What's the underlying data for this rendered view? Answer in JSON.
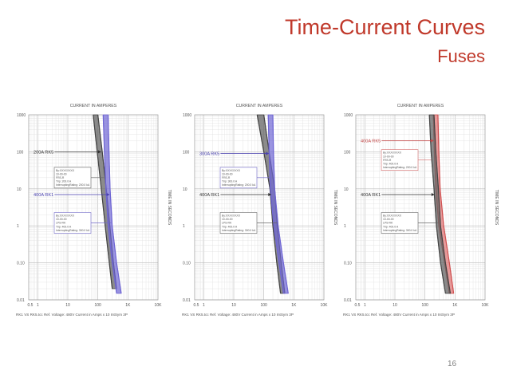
{
  "slide": {
    "title": "Time-Current Curves",
    "subtitle": "Fuses",
    "page_number": "16"
  },
  "colors": {
    "title": "#c0392b",
    "grid": "#d0d0d0",
    "curve_gray": "#555555",
    "curve_blue": "#6f66d4",
    "curve_red": "#e07a7a",
    "callout_blue": "#7068c8",
    "callout_red": "#d66a6a"
  },
  "chart_data": [
    {
      "type": "line",
      "title": "CURRENT IN AMPERES",
      "ylabel": "TIME IN SECONDS",
      "footer": "RK1 VS RK5.tcc  Ref. Voltage: 480V  Current in Amps x 10  IntSym 3P",
      "x_scale": "log",
      "y_scale": "log",
      "xlim": [
        0.5,
        10000
      ],
      "ylim": [
        0.01,
        1000
      ],
      "x_ticks": [
        "0.5",
        "1",
        "10",
        "100",
        "1K",
        "10K"
      ],
      "y_ticks": [
        "1000",
        "100",
        "10",
        "1",
        "0.10",
        "0.01"
      ],
      "grid": true,
      "series": [
        {
          "name": "200A RK5",
          "color": "gray",
          "upper": [
            [
              100,
              1000
            ],
            [
              140,
              100
            ],
            [
              190,
              10
            ],
            [
              250,
              1
            ],
            [
              330,
              0.1
            ],
            [
              420,
              0.02
            ]
          ],
          "lower": [
            [
              70,
              1000
            ],
            [
              95,
              100
            ],
            [
              130,
              10
            ],
            [
              175,
              1
            ],
            [
              240,
              0.1
            ],
            [
              300,
              0.02
            ]
          ]
        },
        {
          "name": "400A RK1",
          "color": "blue",
          "upper": [
            [
              220,
              1000
            ],
            [
              235,
              100
            ],
            [
              255,
              10
            ],
            [
              300,
              1
            ],
            [
              420,
              0.1
            ],
            [
              600,
              0.015
            ]
          ],
          "lower": [
            [
              150,
              1000
            ],
            [
              165,
              100
            ],
            [
              185,
              10
            ],
            [
              220,
              1
            ],
            [
              300,
              0.1
            ],
            [
              420,
              0.015
            ]
          ]
        }
      ],
      "labels": [
        {
          "text": "200A RK5",
          "y": 100,
          "color": "gray",
          "x_end": 130
        },
        {
          "text": "400A RK1",
          "y": 7,
          "color": "blue",
          "x_end": 250
        }
      ],
      "callouts": [
        {
          "y": 20,
          "color": "gray",
          "lines": [
            "By:XXXXXXXX",
            "10-00-00",
            "FRS-R",
            "Trip: 200.0 A",
            "InterruptingRating: 200.0 kA"
          ]
        },
        {
          "y": 1.2,
          "color": "blue",
          "lines": [
            "By:XXXXXXXX",
            "10-00-00",
            "LPS-RK",
            "Trip: 400.0 A",
            "InterruptingRating: 300.0 kA"
          ]
        }
      ]
    },
    {
      "type": "line",
      "title": "CURRENT IN AMPERES",
      "ylabel": "TIME IN SECONDS",
      "footer": "RK1 VS RK5.tcc  Ref. Voltage: 480V  Current in Amps x 10  IntSym 3P",
      "x_scale": "log",
      "y_scale": "log",
      "xlim": [
        0.5,
        10000
      ],
      "ylim": [
        0.01,
        1000
      ],
      "x_ticks": [
        "0.5",
        "1",
        "10",
        "100",
        "1K",
        "10K"
      ],
      "y_ticks": [
        "1000",
        "100",
        "10",
        "1",
        "0.10",
        "0.01"
      ],
      "grid": true,
      "series": [
        {
          "name": "400A RK1",
          "color": "gray",
          "upper": [
            [
              100,
              1000
            ],
            [
              150,
              100
            ],
            [
              230,
              10
            ],
            [
              280,
              1
            ],
            [
              380,
              0.1
            ],
            [
              500,
              0.015
            ]
          ],
          "lower": [
            [
              60,
              1000
            ],
            [
              100,
              100
            ],
            [
              160,
              10
            ],
            [
              200,
              1
            ],
            [
              270,
              0.1
            ],
            [
              360,
              0.015
            ]
          ]
        },
        {
          "name": "300A RK5",
          "color": "blue",
          "upper": [
            [
              200,
              1000
            ],
            [
              210,
              100
            ],
            [
              230,
              10
            ],
            [
              300,
              1
            ],
            [
              450,
              0.1
            ],
            [
              650,
              0.015
            ]
          ],
          "lower": [
            [
              140,
              1000
            ],
            [
              150,
              100
            ],
            [
              165,
              10
            ],
            [
              215,
              1
            ],
            [
              320,
              0.1
            ],
            [
              450,
              0.015
            ]
          ]
        }
      ],
      "labels": [
        {
          "text": "300A RK5",
          "y": 90,
          "color": "blue",
          "x_end": 150
        },
        {
          "text": "400A RK1",
          "y": 7,
          "color": "gray",
          "x_end": 180
        }
      ],
      "callouts": [
        {
          "y": 20,
          "color": "blue",
          "lines": [
            "By:XXXXXXXX",
            "10-00-00",
            "FRS-R",
            "Trip: 300.0 A",
            "InterruptingRating: 200.0 kA"
          ]
        },
        {
          "y": 1.2,
          "color": "gray",
          "lines": [
            "By:XXXXXXXX",
            "10-00-00",
            "LPS-RK",
            "Trip: 400.0 A",
            "InterruptingRating: 300.0 kA"
          ]
        }
      ]
    },
    {
      "type": "line",
      "title": "CURRENT IN AMPERES",
      "ylabel": "TIME IN SECONDS",
      "footer": "RK1 VS RK5.tcc  Ref. Voltage: 480V  Current in Amps x 10  IntSym 3P",
      "x_scale": "log",
      "y_scale": "log",
      "xlim": [
        0.5,
        10000
      ],
      "ylim": [
        0.01,
        1000
      ],
      "x_ticks": [
        "0.5",
        "1",
        "10",
        "100",
        "1K",
        "10K"
      ],
      "y_ticks": [
        "1000",
        "100",
        "10",
        "1",
        "0.10",
        "0.01"
      ],
      "grid": true,
      "series": [
        {
          "name": "400A RK5",
          "color": "red",
          "upper": [
            [
              270,
              1000
            ],
            [
              290,
              100
            ],
            [
              320,
              10
            ],
            [
              420,
              1
            ],
            [
              650,
              0.1
            ],
            [
              900,
              0.015
            ]
          ],
          "lower": [
            [
              190,
              1000
            ],
            [
              205,
              100
            ],
            [
              230,
              10
            ],
            [
              290,
              1
            ],
            [
              450,
              0.1
            ],
            [
              650,
              0.015
            ]
          ]
        },
        {
          "name": "400A RK1",
          "color": "gray",
          "upper": [
            [
              200,
              1000
            ],
            [
              230,
              100
            ],
            [
              280,
              10
            ],
            [
              330,
              1
            ],
            [
              480,
              0.1
            ],
            [
              700,
              0.015
            ]
          ],
          "lower": [
            [
              140,
              1000
            ],
            [
              160,
              100
            ],
            [
              200,
              10
            ],
            [
              240,
              1
            ],
            [
              330,
              0.1
            ],
            [
              480,
              0.015
            ]
          ]
        }
      ],
      "labels": [
        {
          "text": "400A RK5",
          "y": 200,
          "color": "red",
          "x_end": 200
        },
        {
          "text": "400A RK1",
          "y": 7,
          "color": "gray",
          "x_end": 210
        }
      ],
      "callouts": [
        {
          "y": 60,
          "color": "red",
          "lines": [
            "By:XXXXXXXX",
            "10-00-00",
            "FRS-R",
            "Trip: 400.0 A",
            "InterruptingRating: 200.0 kA"
          ]
        },
        {
          "y": 1.2,
          "color": "gray",
          "lines": [
            "By:XXXXXXXX",
            "10-00-00",
            "LPS-RK",
            "Trip: 400.0 A",
            "InterruptingRating: 300.0 kA"
          ]
        }
      ]
    }
  ]
}
